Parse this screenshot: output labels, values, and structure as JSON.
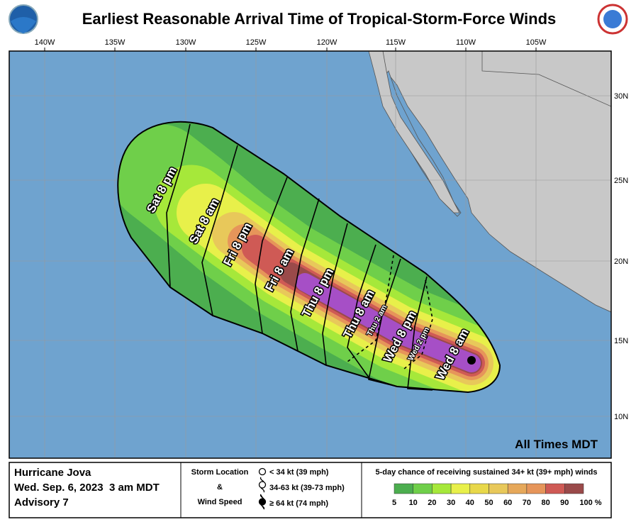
{
  "header": {
    "title": "Earliest Reasonable Arrival Time of Tropical-Storm-Force Winds"
  },
  "map": {
    "longitude_labels": [
      "140W",
      "135W",
      "130W",
      "125W",
      "120W",
      "115W",
      "110W",
      "105W"
    ],
    "latitude_labels": [
      "30N",
      "25N",
      "20N",
      "15N",
      "10N"
    ],
    "time_labels": [
      "Sat 8 pm",
      "Sat 8 am",
      "Fri 8 pm",
      "Fri 8 am",
      "Thu 8 pm",
      "Thu 8 am",
      "Thu 2 am",
      "Wed 8 pm",
      "Wed 2 pm",
      "Wed 8 am"
    ],
    "timezone_note": "All Times MDT"
  },
  "footer": {
    "storm": "Hurricane Jova",
    "date": "Wed. Sep. 6, 2023  3 am MDT",
    "advisory": "Advisory 7",
    "storm_location": {
      "title": "Storm Location",
      "joiner": "&",
      "subtitle": "Wind Speed",
      "items": [
        "< 34 kt (39 mph)",
        "34-63 kt (39-73 mph)",
        "≥ 64 kt (74 mph)"
      ]
    },
    "probability": {
      "title": "5-day chance of receiving sustained 34+ kt (39+ mph) winds",
      "scale": [
        "5",
        "10",
        "20",
        "30",
        "40",
        "50",
        "60",
        "70",
        "80",
        "90",
        "100 %"
      ]
    }
  }
}
